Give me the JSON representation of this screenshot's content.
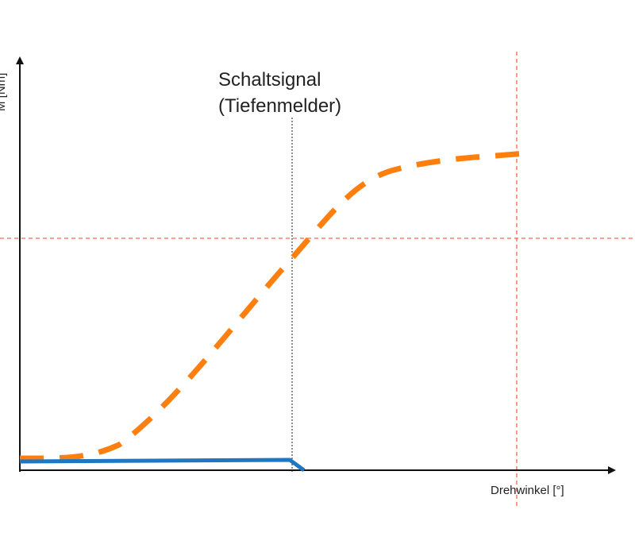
{
  "annotation": {
    "line1": "Schaltsignal",
    "line2": "(Tiefenmelder)"
  },
  "x_axis_label": "Drehwinkel [°]",
  "y_axis_label": "M [Nm]"
}
